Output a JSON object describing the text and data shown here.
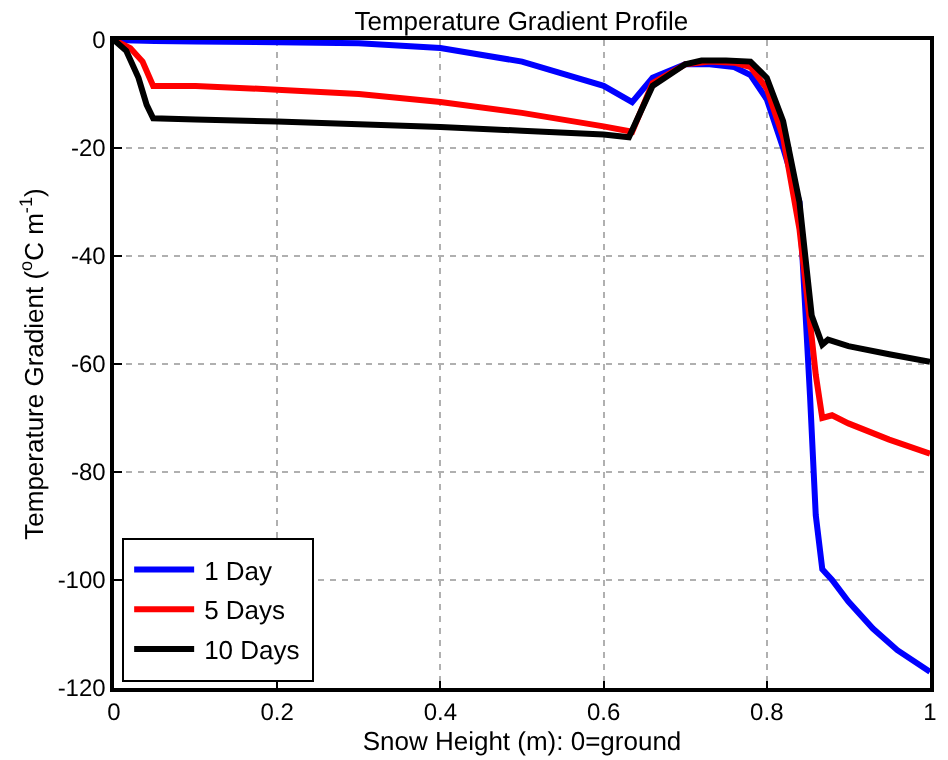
{
  "chart_data": {
    "type": "line",
    "title": "Temperature Gradient Profile",
    "xlabel": "Snow Height (m): 0=ground",
    "ylabel": "Temperature Gradient ($^{o}$C m$^{-1}$)",
    "xlim": [
      0,
      1
    ],
    "ylim": [
      -120,
      0
    ],
    "xticks": [
      0,
      0.2,
      0.4,
      0.6,
      0.8,
      1
    ],
    "yticks": [
      -120,
      -100,
      -80,
      -60,
      -40,
      -20,
      0
    ],
    "grid": true,
    "legend": "bottom left",
    "line_style": "solid",
    "marker": "none",
    "series": [
      {
        "name": "1 Day",
        "color": "#0000ff",
        "x": [
          0,
          0.05,
          0.1,
          0.2,
          0.3,
          0.4,
          0.5,
          0.6,
          0.635,
          0.66,
          0.7,
          0.73,
          0.76,
          0.78,
          0.8,
          0.82,
          0.84,
          0.853,
          0.86,
          0.868,
          0.88,
          0.9,
          0.93,
          0.96,
          1.0
        ],
        "values": [
          0,
          -0.2,
          -0.3,
          -0.4,
          -0.6,
          -1.5,
          -4,
          -8.5,
          -11.5,
          -7,
          -4.5,
          -4.5,
          -5,
          -6.5,
          -11,
          -20,
          -30,
          -66,
          -88,
          -98,
          -100,
          -104,
          -109,
          -113,
          -117
        ]
      },
      {
        "name": "5 Days",
        "color": "#ff0000",
        "x": [
          0,
          0.02,
          0.035,
          0.048,
          0.1,
          0.2,
          0.3,
          0.4,
          0.5,
          0.6,
          0.635,
          0.66,
          0.7,
          0.73,
          0.76,
          0.78,
          0.8,
          0.82,
          0.84,
          0.855,
          0.86,
          0.868,
          0.88,
          0.9,
          0.95,
          1.0
        ],
        "values": [
          0,
          -1.5,
          -4,
          -8.5,
          -8.5,
          -9.2,
          -10,
          -11.5,
          -13.5,
          -16,
          -17,
          -8,
          -4.5,
          -4,
          -4.2,
          -5,
          -9,
          -18,
          -35,
          -55,
          -62,
          -70,
          -69.5,
          -71,
          -74,
          -76.6
        ]
      },
      {
        "name": "10 Days",
        "color": "#000000",
        "x": [
          0,
          0.015,
          0.03,
          0.04,
          0.048,
          0.1,
          0.2,
          0.3,
          0.4,
          0.5,
          0.6,
          0.631,
          0.66,
          0.7,
          0.72,
          0.75,
          0.78,
          0.8,
          0.82,
          0.84,
          0.855,
          0.868,
          0.875,
          0.9,
          0.95,
          1.0
        ],
        "values": [
          0,
          -2,
          -7,
          -12,
          -14.5,
          -14.7,
          -15.1,
          -15.6,
          -16.1,
          -16.8,
          -17.5,
          -18,
          -8.5,
          -4.5,
          -3.8,
          -3.8,
          -4,
          -7,
          -15,
          -30,
          -51,
          -56.4,
          -55.5,
          -56.7,
          -58.2,
          -59.6
        ]
      }
    ]
  }
}
